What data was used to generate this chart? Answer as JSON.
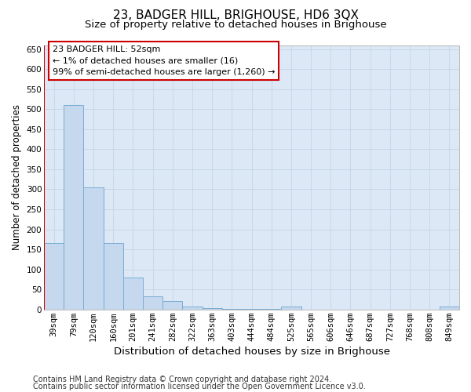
{
  "title": "23, BADGER HILL, BRIGHOUSE, HD6 3QX",
  "subtitle": "Size of property relative to detached houses in Brighouse",
  "xlabel": "Distribution of detached houses by size in Brighouse",
  "ylabel": "Number of detached properties",
  "categories": [
    "39sqm",
    "79sqm",
    "120sqm",
    "160sqm",
    "201sqm",
    "241sqm",
    "282sqm",
    "322sqm",
    "363sqm",
    "403sqm",
    "444sqm",
    "484sqm",
    "525sqm",
    "565sqm",
    "606sqm",
    "646sqm",
    "687sqm",
    "727sqm",
    "768sqm",
    "808sqm",
    "849sqm"
  ],
  "values": [
    165,
    510,
    305,
    165,
    80,
    33,
    22,
    7,
    4,
    2,
    1,
    1,
    7,
    0,
    0,
    0,
    0,
    0,
    0,
    0,
    7
  ],
  "bar_color": "#c5d8ee",
  "bar_edgecolor": "#7aadd4",
  "bar_linewidth": 0.7,
  "property_line_color": "#cc0000",
  "property_line_x": -0.5,
  "annotation_line1": "23 BADGER HILL: 52sqm",
  "annotation_line2": "← 1% of detached houses are smaller (16)",
  "annotation_line3": "99% of semi-detached houses are larger (1,260) →",
  "annotation_box_edgecolor": "#cc0000",
  "ylim": [
    0,
    660
  ],
  "yticks": [
    0,
    50,
    100,
    150,
    200,
    250,
    300,
    350,
    400,
    450,
    500,
    550,
    600,
    650
  ],
  "grid_color": "#c5d5e5",
  "bg_color": "#dce8f5",
  "footer_line1": "Contains HM Land Registry data © Crown copyright and database right 2024.",
  "footer_line2": "Contains public sector information licensed under the Open Government Licence v3.0.",
  "title_fontsize": 11,
  "subtitle_fontsize": 9.5,
  "xlabel_fontsize": 9.5,
  "ylabel_fontsize": 8.5,
  "tick_fontsize": 7.5,
  "annotation_fontsize": 8,
  "footer_fontsize": 7
}
